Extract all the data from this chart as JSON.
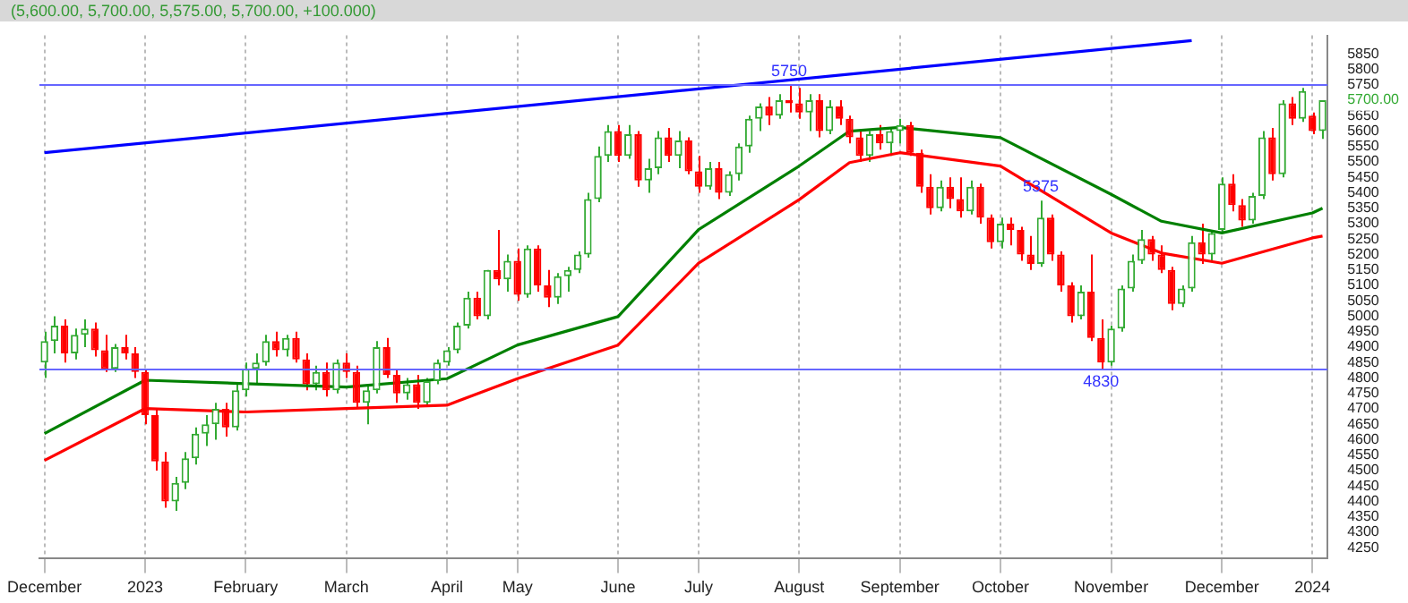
{
  "chart_data": {
    "type": "candlestick",
    "title": "(5,600.00, 5,700.00, 5,575.00, 5,700.00, +100.000)",
    "categories": [
      "December",
      null,
      null,
      null,
      null,
      null,
      null,
      null,
      null,
      null,
      "2023",
      null,
      null,
      null,
      null,
      null,
      null,
      null,
      null,
      null,
      "February",
      null,
      null,
      null,
      null,
      null,
      null,
      null,
      null,
      null,
      "March",
      null,
      null,
      null,
      null,
      null,
      null,
      null,
      null,
      null,
      "April",
      null,
      null,
      null,
      null,
      null,
      null,
      "May",
      null,
      null,
      null,
      null,
      null,
      null,
      null,
      null,
      null,
      "June",
      null,
      null,
      null,
      null,
      null,
      null,
      null,
      "July",
      null,
      null,
      null,
      null,
      null,
      null,
      null,
      null,
      null,
      "August",
      null,
      null,
      null,
      null,
      null,
      null,
      null,
      null,
      null,
      "September",
      null,
      null,
      null,
      null,
      null,
      null,
      null,
      null,
      null,
      "October",
      null,
      null,
      null,
      null,
      null,
      null,
      null,
      null,
      null,
      null,
      "November",
      null,
      null,
      null,
      null,
      null,
      null,
      null,
      null,
      null,
      null,
      "December",
      null,
      null,
      null,
      null,
      null,
      null,
      null,
      null,
      "2024",
      null
    ],
    "series": [
      {
        "type": "candlestick",
        "ohlc": [
          [
            4850,
            4950,
            4800,
            4920
          ],
          [
            4920,
            5000,
            4880,
            4970
          ],
          [
            4970,
            4990,
            4850,
            4880
          ],
          [
            4880,
            4960,
            4860,
            4940
          ],
          [
            4940,
            4990,
            4900,
            4960
          ],
          [
            4960,
            4980,
            4870,
            4890
          ],
          [
            4890,
            4940,
            4820,
            4830
          ],
          [
            4830,
            4910,
            4820,
            4900
          ],
          [
            4900,
            4940,
            4860,
            4880
          ],
          [
            4880,
            4900,
            4800,
            4820
          ],
          [
            4820,
            4830,
            4650,
            4680
          ],
          [
            4680,
            4700,
            4500,
            4530
          ],
          [
            4530,
            4560,
            4380,
            4400
          ],
          [
            4400,
            4480,
            4370,
            4460
          ],
          [
            4460,
            4560,
            4440,
            4540
          ],
          [
            4540,
            4640,
            4520,
            4620
          ],
          [
            4620,
            4680,
            4580,
            4650
          ],
          [
            4650,
            4720,
            4600,
            4700
          ],
          [
            4700,
            4720,
            4610,
            4640
          ],
          [
            4640,
            4780,
            4630,
            4760
          ],
          [
            4760,
            4850,
            4740,
            4830
          ],
          [
            4830,
            4880,
            4780,
            4850
          ],
          [
            4850,
            4940,
            4840,
            4920
          ],
          [
            4920,
            4950,
            4870,
            4890
          ],
          [
            4890,
            4940,
            4870,
            4930
          ],
          [
            4930,
            4950,
            4850,
            4860
          ],
          [
            4860,
            4880,
            4760,
            4780
          ],
          [
            4780,
            4840,
            4760,
            4820
          ],
          [
            4820,
            4850,
            4740,
            4760
          ],
          [
            4760,
            4860,
            4750,
            4850
          ],
          [
            4850,
            4880,
            4800,
            4820
          ],
          [
            4820,
            4840,
            4700,
            4720
          ],
          [
            4720,
            4780,
            4650,
            4760
          ],
          [
            4760,
            4920,
            4750,
            4900
          ],
          [
            4900,
            4930,
            4800,
            4810
          ],
          [
            4810,
            4830,
            4720,
            4750
          ],
          [
            4750,
            4800,
            4730,
            4780
          ],
          [
            4780,
            4810,
            4700,
            4720
          ],
          [
            4720,
            4800,
            4710,
            4790
          ],
          [
            4790,
            4860,
            4780,
            4850
          ],
          [
            4850,
            4900,
            4840,
            4890
          ],
          [
            4890,
            4980,
            4880,
            4970
          ],
          [
            4970,
            5080,
            4960,
            5060
          ],
          [
            5060,
            5080,
            4990,
            5000
          ],
          [
            5000,
            5150,
            4990,
            5150
          ],
          [
            5150,
            5280,
            5100,
            5120
          ],
          [
            5120,
            5200,
            5080,
            5180
          ],
          [
            5180,
            5220,
            5050,
            5070
          ],
          [
            5070,
            5230,
            5060,
            5220
          ],
          [
            5220,
            5230,
            5080,
            5100
          ],
          [
            5100,
            5150,
            5030,
            5060
          ],
          [
            5060,
            5140,
            5040,
            5130
          ],
          [
            5130,
            5160,
            5080,
            5150
          ],
          [
            5150,
            5210,
            5140,
            5200
          ],
          [
            5200,
            5400,
            5190,
            5380
          ],
          [
            5380,
            5550,
            5370,
            5520
          ],
          [
            5520,
            5620,
            5500,
            5600
          ],
          [
            5600,
            5620,
            5500,
            5520
          ],
          [
            5520,
            5620,
            5510,
            5590
          ],
          [
            5590,
            5600,
            5420,
            5440
          ],
          [
            5440,
            5510,
            5400,
            5480
          ],
          [
            5480,
            5600,
            5460,
            5580
          ],
          [
            5580,
            5610,
            5500,
            5520
          ],
          [
            5520,
            5600,
            5480,
            5570
          ],
          [
            5570,
            5580,
            5460,
            5470
          ],
          [
            5470,
            5520,
            5400,
            5420
          ],
          [
            5420,
            5500,
            5410,
            5480
          ],
          [
            5480,
            5500,
            5380,
            5400
          ],
          [
            5400,
            5470,
            5390,
            5460
          ],
          [
            5460,
            5560,
            5440,
            5550
          ],
          [
            5550,
            5650,
            5530,
            5640
          ],
          [
            5640,
            5690,
            5600,
            5680
          ],
          [
            5680,
            5710,
            5620,
            5650
          ],
          [
            5650,
            5720,
            5640,
            5700
          ],
          [
            5700,
            5750,
            5660,
            5690
          ],
          [
            5690,
            5740,
            5640,
            5660
          ],
          [
            5660,
            5720,
            5600,
            5700
          ],
          [
            5700,
            5720,
            5580,
            5600
          ],
          [
            5600,
            5700,
            5590,
            5680
          ],
          [
            5680,
            5700,
            5620,
            5640
          ],
          [
            5640,
            5650,
            5560,
            5580
          ],
          [
            5580,
            5600,
            5500,
            5520
          ],
          [
            5520,
            5600,
            5500,
            5590
          ],
          [
            5590,
            5620,
            5540,
            5560
          ],
          [
            5560,
            5610,
            5520,
            5600
          ],
          [
            5600,
            5640,
            5560,
            5620
          ],
          [
            5620,
            5630,
            5520,
            5530
          ],
          [
            5530,
            5540,
            5400,
            5420
          ],
          [
            5420,
            5460,
            5330,
            5350
          ],
          [
            5350,
            5440,
            5340,
            5420
          ],
          [
            5420,
            5450,
            5350,
            5380
          ],
          [
            5380,
            5450,
            5320,
            5340
          ],
          [
            5340,
            5440,
            5330,
            5420
          ],
          [
            5420,
            5430,
            5300,
            5320
          ],
          [
            5320,
            5330,
            5220,
            5240
          ],
          [
            5240,
            5320,
            5220,
            5300
          ],
          [
            5300,
            5320,
            5230,
            5280
          ],
          [
            5280,
            5290,
            5180,
            5200
          ],
          [
            5200,
            5260,
            5150,
            5170
          ],
          [
            5170,
            5375,
            5160,
            5320
          ],
          [
            5320,
            5330,
            5180,
            5200
          ],
          [
            5200,
            5210,
            5080,
            5100
          ],
          [
            5100,
            5110,
            4980,
            5000
          ],
          [
            5000,
            5100,
            4990,
            5080
          ],
          [
            5080,
            5200,
            4920,
            4930
          ],
          [
            4930,
            4990,
            4830,
            4850
          ],
          [
            4850,
            4970,
            4840,
            4960
          ],
          [
            4960,
            5100,
            4950,
            5090
          ],
          [
            5090,
            5200,
            5080,
            5180
          ],
          [
            5180,
            5280,
            5170,
            5250
          ],
          [
            5250,
            5260,
            5180,
            5200
          ],
          [
            5200,
            5230,
            5140,
            5150
          ],
          [
            5150,
            5160,
            5020,
            5040
          ],
          [
            5040,
            5100,
            5030,
            5090
          ],
          [
            5090,
            5260,
            5080,
            5240
          ],
          [
            5240,
            5300,
            5170,
            5200
          ],
          [
            5200,
            5280,
            5180,
            5270
          ],
          [
            5280,
            5450,
            5270,
            5430
          ],
          [
            5430,
            5460,
            5340,
            5360
          ],
          [
            5360,
            5380,
            5290,
            5310
          ],
          [
            5310,
            5400,
            5300,
            5390
          ],
          [
            5390,
            5600,
            5380,
            5580
          ],
          [
            5580,
            5610,
            5440,
            5460
          ],
          [
            5460,
            5700,
            5450,
            5690
          ],
          [
            5690,
            5710,
            5620,
            5640
          ],
          [
            5640,
            5740,
            5630,
            5730
          ],
          [
            5650,
            5660,
            5590,
            5600
          ],
          [
            5600,
            5700,
            5575,
            5700
          ]
        ]
      },
      {
        "type": "line",
        "color": "#008000",
        "values": [
          4620,
          null,
          null,
          null,
          null,
          null,
          null,
          null,
          null,
          null,
          4793,
          null,
          null,
          null,
          null,
          null,
          null,
          null,
          null,
          null,
          4782,
          null,
          null,
          null,
          null,
          null,
          null,
          null,
          null,
          null,
          4771,
          null,
          null,
          null,
          null,
          null,
          null,
          null,
          null,
          null,
          4798,
          null,
          null,
          null,
          null,
          null,
          null,
          4907,
          null,
          null,
          null,
          null,
          null,
          null,
          null,
          null,
          null,
          4999,
          null,
          null,
          null,
          null,
          null,
          null,
          null,
          5281,
          null,
          null,
          null,
          null,
          null,
          null,
          null,
          null,
          null,
          5487,
          null,
          null,
          null,
          null,
          5600,
          null,
          null,
          null,
          null,
          5612,
          null,
          null,
          null,
          null,
          null,
          null,
          null,
          null,
          null,
          5579,
          null,
          null,
          null,
          null,
          null,
          null,
          null,
          null,
          null,
          null,
          5395,
          null,
          null,
          null,
          null,
          5308,
          null,
          null,
          null,
          null,
          null,
          5270,
          null,
          null,
          null,
          null,
          null,
          null,
          null,
          null,
          5335,
          5350
        ]
      },
      {
        "type": "line",
        "color": "#ff0000",
        "values": [
          4533,
          null,
          null,
          null,
          null,
          null,
          null,
          null,
          null,
          null,
          4701,
          null,
          null,
          null,
          null,
          null,
          null,
          null,
          null,
          null,
          4690,
          null,
          null,
          null,
          null,
          null,
          null,
          null,
          null,
          null,
          4701,
          null,
          null,
          null,
          null,
          null,
          null,
          null,
          null,
          null,
          4712,
          null,
          null,
          null,
          null,
          null,
          null,
          4798,
          null,
          null,
          null,
          null,
          null,
          null,
          null,
          null,
          null,
          4907,
          null,
          null,
          null,
          null,
          null,
          null,
          null,
          5172,
          null,
          null,
          null,
          null,
          null,
          null,
          null,
          null,
          null,
          5378,
          null,
          null,
          null,
          null,
          5498,
          null,
          null,
          null,
          null,
          5530,
          null,
          null,
          null,
          null,
          null,
          null,
          null,
          null,
          null,
          5487,
          null,
          null,
          null,
          null,
          null,
          null,
          null,
          null,
          null,
          null,
          5270,
          null,
          null,
          null,
          null,
          5205,
          null,
          null,
          null,
          null,
          null,
          5172,
          null,
          null,
          null,
          null,
          null,
          null,
          null,
          null,
          5254,
          5260
        ]
      },
      {
        "type": "line",
        "color": "#0000ff",
        "values": [
          5530,
          null,
          null,
          null,
          null,
          null,
          null,
          null,
          null,
          null,
          null,
          null,
          null,
          null,
          null,
          null,
          null,
          null,
          null,
          null,
          null,
          null,
          null,
          null,
          null,
          null,
          null,
          null,
          null,
          null,
          null,
          null,
          null,
          null,
          null,
          null,
          null,
          null,
          null,
          null,
          null,
          null,
          null,
          null,
          null,
          null,
          null,
          null,
          null,
          null,
          null,
          null,
          null,
          null,
          null,
          null,
          null,
          null,
          null,
          null,
          null,
          null,
          null,
          null,
          null,
          null,
          null,
          null,
          null,
          null,
          null,
          null,
          null,
          null,
          null,
          null,
          null,
          null,
          null,
          null,
          null,
          null,
          null,
          null,
          null,
          null,
          null,
          null,
          null,
          null,
          null,
          null,
          null,
          null,
          null,
          null,
          null,
          null,
          null,
          null,
          null,
          null,
          null,
          null,
          null,
          null,
          null,
          null,
          null,
          null,
          null,
          null,
          null,
          null,
          5893,
          null,
          null,
          null,
          null,
          null,
          null,
          null,
          null,
          null,
          null,
          null,
          null,
          null
        ]
      }
    ],
    "ylim": [
      4215,
      5910
    ],
    "yticks": [
      4250,
      4300,
      4350,
      4400,
      4450,
      4500,
      4550,
      4600,
      4650,
      4700,
      4750,
      4800,
      4850,
      4900,
      4950,
      5000,
      5050,
      5100,
      5150,
      5200,
      5250,
      5300,
      5350,
      5400,
      5450,
      5500,
      5550,
      5600,
      5650,
      {
        "value": 5700,
        "label": "5700.00"
      },
      5750,
      5800,
      5850
    ],
    "grid": "x",
    "marker": "none",
    "ref_lines": [
      {
        "axis": "y",
        "value": 5750,
        "color": "#6666ff"
      },
      {
        "axis": "y",
        "value": 4830,
        "color": "#6666ff"
      }
    ],
    "annotations": [
      {
        "text": "5750",
        "y": 5750
      },
      {
        "text": "5375",
        "y": 5375
      },
      {
        "text": "4830",
        "y": 4830
      }
    ]
  }
}
